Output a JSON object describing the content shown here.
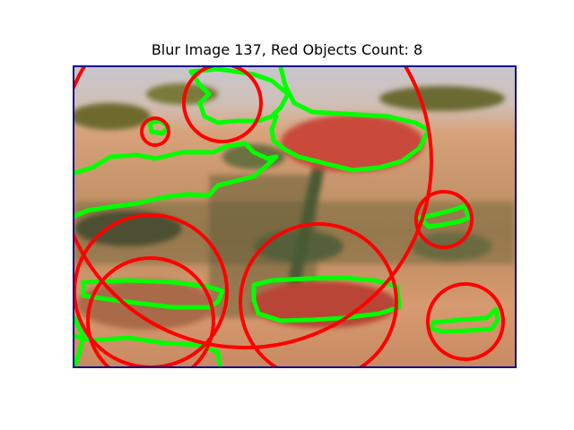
{
  "figure": {
    "title": "Blur Image 137, Red Objects Count: 8"
  },
  "image": {
    "description_colors": {
      "background_top": "#c9c6cc",
      "background_mid": "#d99a72",
      "background_low": "#c98a5e",
      "leaf_dark": "#5a5a2a",
      "leaf_olive": "#7a7a3a",
      "stem_green": "#4a5a32",
      "fruit_red": "#c94a3a",
      "fruit_red_dark": "#a8382c",
      "frame_blue": "#0a0a8c"
    },
    "overlay": {
      "circle_color": "#ff0000",
      "contour_color": "#00ff00",
      "detected_count": 8
    }
  }
}
